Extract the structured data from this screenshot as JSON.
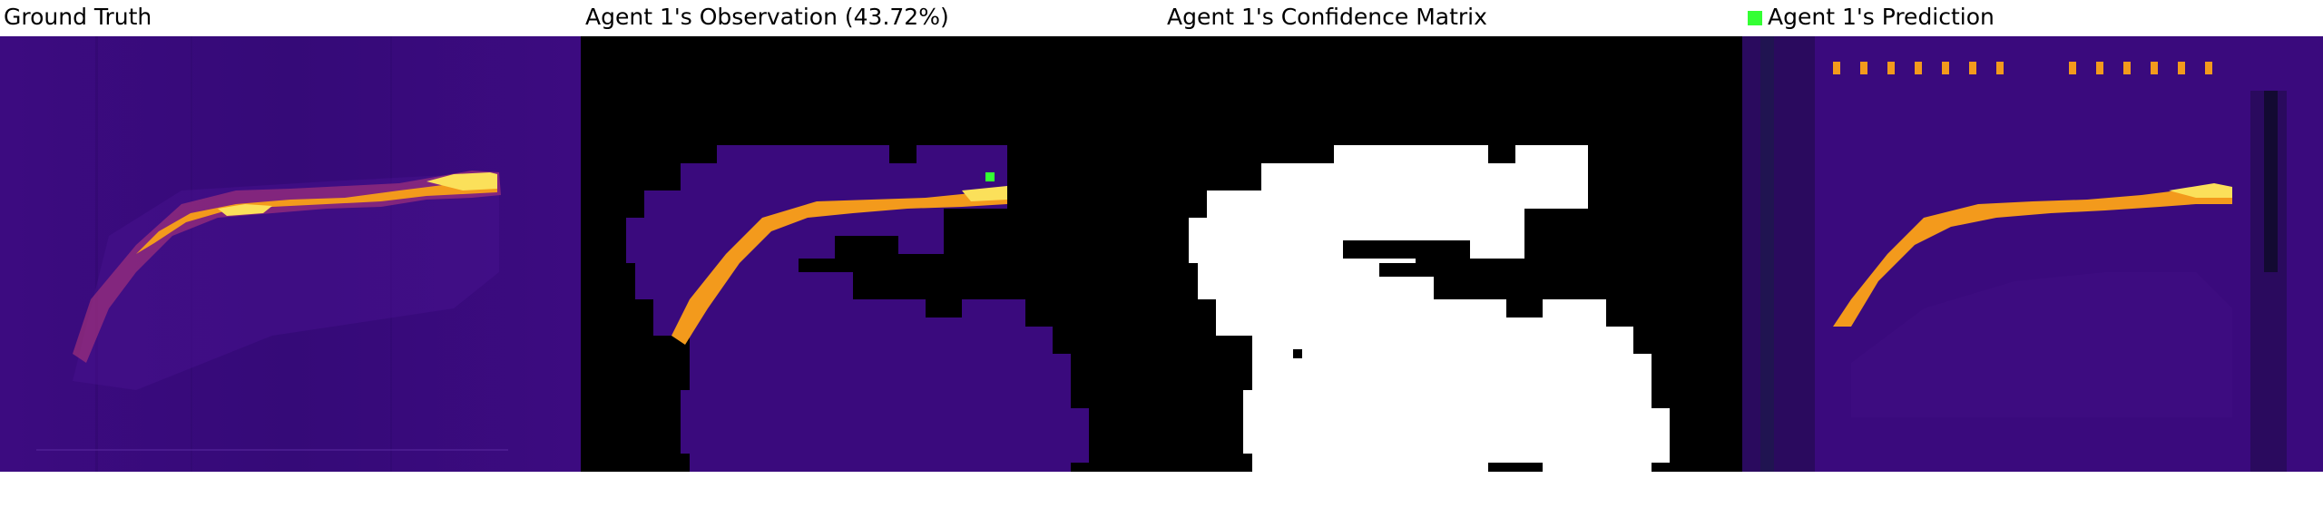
{
  "titles": {
    "ground_truth": "Ground Truth",
    "observation": "Agent 1's Observation (43.72%)",
    "confidence": "Agent 1's Confidence Matrix",
    "prediction": "Agent 1's Prediction"
  },
  "colors": {
    "background_purple": "#3a0a7d",
    "dark_purple": "#2c0870",
    "mask_black": "#000000",
    "confidence_white": "#ffffff",
    "hot_orange": "#f39a1c",
    "hot_yellow": "#fbe05a",
    "agent_marker": "#33ff33"
  },
  "icons": {
    "agent_marker": "green-square-icon"
  }
}
